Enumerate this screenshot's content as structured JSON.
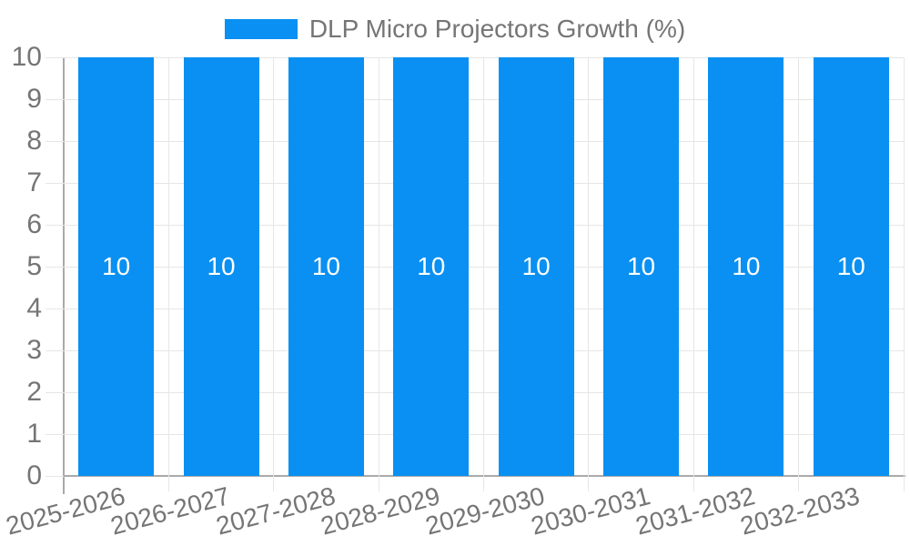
{
  "legend": {
    "label": "DLP Micro Projectors Growth (%)"
  },
  "chart_data": {
    "type": "bar",
    "title": "",
    "xlabel": "",
    "ylabel": "",
    "categories": [
      "2025-2026",
      "2026-2027",
      "2027-2028",
      "2028-2029",
      "2029-2030",
      "2030-2031",
      "2031-2032",
      "2032-2033"
    ],
    "series": [
      {
        "name": "DLP Micro Projectors Growth (%)",
        "values": [
          10,
          10,
          10,
          10,
          10,
          10,
          10,
          10
        ]
      }
    ],
    "bar_value_labels": [
      "10",
      "10",
      "10",
      "10",
      "10",
      "10",
      "10",
      "10"
    ],
    "ylim": [
      0,
      10
    ],
    "yticks": [
      0,
      1,
      2,
      3,
      4,
      5,
      6,
      7,
      8,
      9,
      10
    ],
    "grid": true,
    "legend_position": "top"
  },
  "colors": {
    "bar": "#0990f2",
    "axis_text": "#757575",
    "gridline": "#e6e6e6",
    "axis_border": "#aaaaaa",
    "value_label": "#ffffff",
    "background": "#ffffff"
  }
}
